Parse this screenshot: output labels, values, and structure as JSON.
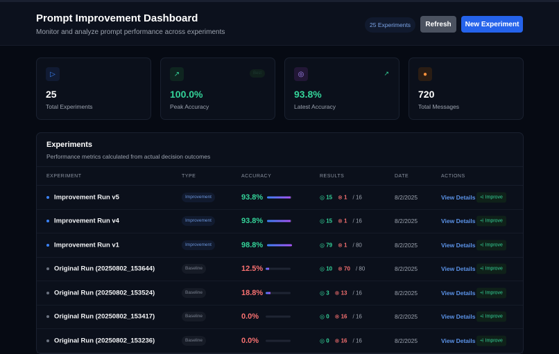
{
  "header": {
    "title": "Prompt Improvement Dashboard",
    "subtitle": "Monitor and analyze prompt performance across experiments",
    "badge": "25 Experiments",
    "refresh": "Refresh",
    "new_experiment": "New Experiment"
  },
  "stats": [
    {
      "value": "25",
      "label": "Total Experiments",
      "icon": "play-icon",
      "color": "#ffffff"
    },
    {
      "value": "100.0%",
      "label": "Peak Accuracy",
      "icon": "trending-up-icon",
      "tag": "Best",
      "color": "#34d399"
    },
    {
      "value": "93.8%",
      "label": "Latest Accuracy",
      "icon": "check-circle-icon",
      "color": "#34d399"
    },
    {
      "value": "720",
      "label": "Total Messages",
      "icon": "message-icon",
      "color": "#ffffff"
    }
  ],
  "experiments": {
    "title": "Experiments",
    "subtitle": "Performance metrics calculated from actual decision outcomes",
    "columns": [
      "EXPERIMENT",
      "TYPE",
      "ACCURACY",
      "RESULTS",
      "DATE",
      "ACTIONS"
    ],
    "rows": [
      {
        "name": "Improvement Run v5",
        "type": "Improvement",
        "accuracy": "93.8%",
        "accuracy_value": 93.8,
        "correct": "15",
        "wrong": "1",
        "total": "/ 16",
        "date": "8/2/2025"
      },
      {
        "name": "Improvement Run v4",
        "type": "Improvement",
        "accuracy": "93.8%",
        "accuracy_value": 93.8,
        "correct": "15",
        "wrong": "1",
        "total": "/ 16",
        "date": "8/2/2025"
      },
      {
        "name": "Improvement Run v1",
        "type": "Improvement",
        "accuracy": "98.8%",
        "accuracy_value": 98.8,
        "correct": "79",
        "wrong": "1",
        "total": "/ 80",
        "date": "8/2/2025"
      },
      {
        "name": "Original Run (20250802_153644)",
        "type": "Baseline",
        "accuracy": "12.5%",
        "accuracy_value": 12.5,
        "correct": "10",
        "wrong": "70",
        "total": "/ 80",
        "date": "8/2/2025"
      },
      {
        "name": "Original Run (20250802_153524)",
        "type": "Baseline",
        "accuracy": "18.8%",
        "accuracy_value": 18.8,
        "correct": "3",
        "wrong": "13",
        "total": "/ 16",
        "date": "8/2/2025"
      },
      {
        "name": "Original Run (20250802_153417)",
        "type": "Baseline",
        "accuracy": "0.0%",
        "accuracy_value": 0,
        "correct": "0",
        "wrong": "16",
        "total": "/ 16",
        "date": "8/2/2025"
      },
      {
        "name": "Original Run (20250802_153236)",
        "type": "Baseline",
        "accuracy": "0.0%",
        "accuracy_value": 0,
        "correct": "0",
        "wrong": "16",
        "total": "/ 16",
        "date": "8/2/2025"
      }
    ],
    "view_label": "View Details",
    "improve_label": "Improve"
  },
  "colors": {
    "accent": "#2563eb",
    "good": "#34d399",
    "bad": "#f87171"
  }
}
